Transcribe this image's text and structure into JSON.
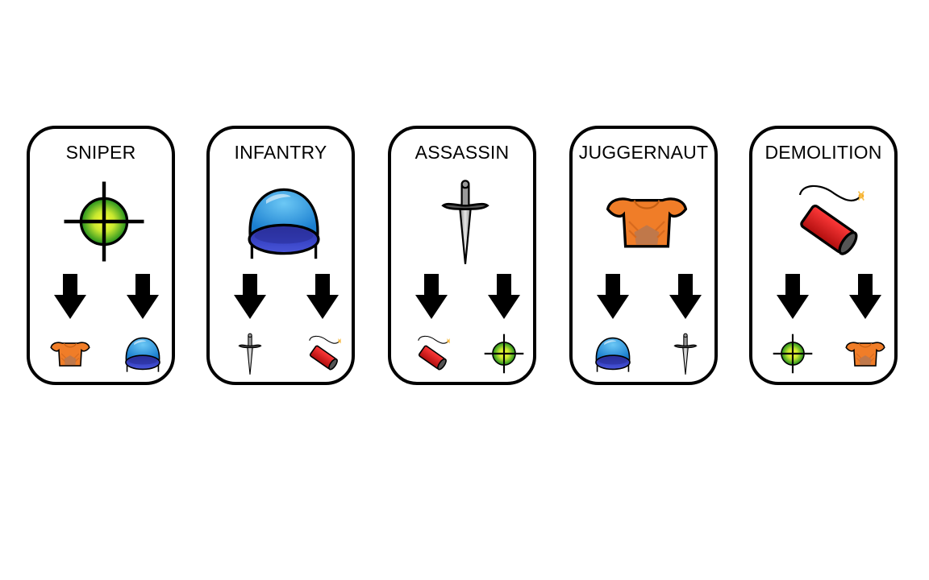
{
  "cards": [
    {
      "title": "SNIPER",
      "icon": "crosshair-icon",
      "beats": [
        "armor-icon",
        "helmet-icon"
      ]
    },
    {
      "title": "INFANTRY",
      "icon": "helmet-icon",
      "beats": [
        "dagger-icon",
        "dynamite-icon"
      ]
    },
    {
      "title": "ASSASSIN",
      "icon": "dagger-icon",
      "beats": [
        "dynamite-icon",
        "crosshair-icon"
      ]
    },
    {
      "title": "JUGGERNAUT",
      "icon": "armor-icon",
      "beats": [
        "helmet-icon",
        "dagger-icon"
      ]
    },
    {
      "title": "DEMOLITION",
      "icon": "dynamite-icon",
      "beats": [
        "crosshair-icon",
        "armor-icon"
      ]
    }
  ],
  "colors": {
    "outline": "#000000",
    "crosshair_core": "#ffff33",
    "crosshair_edge": "#1e8f1e",
    "helmet_top": "#2e9be0",
    "helmet_band": "#3640c0",
    "armor": "#f07d28",
    "armor_plate": "#c0784a",
    "dynamite": "#e01a1a",
    "blade": "#bdbdbd"
  }
}
